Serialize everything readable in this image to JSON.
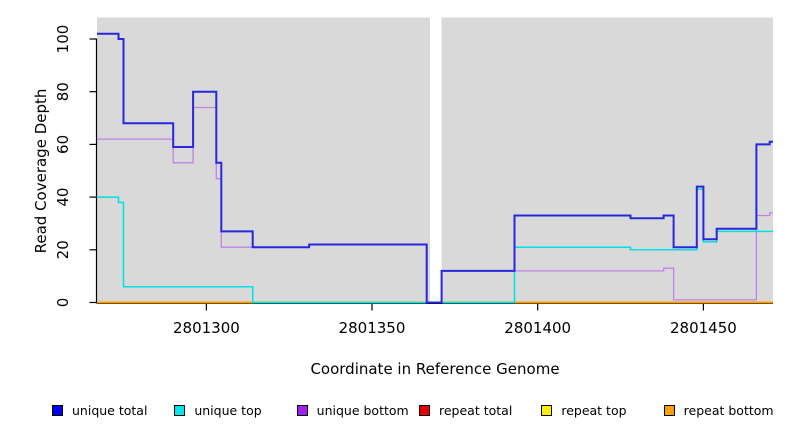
{
  "chart_data": {
    "type": "line",
    "subtype": "step-after",
    "title": "",
    "xlabel": "Coordinate in Reference Genome",
    "ylabel": "Read Coverage Depth",
    "xlim": [
      2801267,
      2801471
    ],
    "ylim": [
      0,
      108
    ],
    "x_ticks": [
      2801300,
      2801350,
      2801400,
      2801450
    ],
    "y_ticks": [
      0,
      20,
      40,
      60,
      80,
      100
    ],
    "grid": false,
    "plot_bg": "#d9d9d9",
    "gap_regions": [
      [
        2801367.5,
        2801371
      ]
    ],
    "legend_position": "bottom",
    "legend_order": [
      "unique total",
      "unique top",
      "unique bottom",
      "repeat total",
      "repeat top",
      "repeat bottom"
    ],
    "series": [
      {
        "name": "repeat total",
        "color": "#e80000",
        "legend_color": "#e80000",
        "width": 1.4,
        "points": [
          [
            2801267,
            0
          ]
        ]
      },
      {
        "name": "repeat top",
        "color": "#ffef00",
        "legend_color": "#ffef00",
        "width": 1.4,
        "points": [
          [
            2801267,
            0
          ]
        ]
      },
      {
        "name": "repeat bottom",
        "color": "#ff9e00",
        "legend_color": "#ff9e00",
        "width": 2,
        "points": [
          [
            2801267,
            0
          ]
        ]
      },
      {
        "name": "unique bottom",
        "color": "#c082e6",
        "legend_color": "#a020f0",
        "width": 1.3,
        "points": [
          [
            2801267,
            62
          ],
          [
            2801290,
            53
          ],
          [
            2801296,
            74
          ],
          [
            2801303,
            47
          ],
          [
            2801304.5,
            21
          ],
          [
            2801331,
            22
          ],
          [
            2801366.5,
            0
          ],
          [
            2801371,
            12
          ],
          [
            2801438,
            13
          ],
          [
            2801441,
            1
          ],
          [
            2801466,
            33
          ],
          [
            2801470,
            34
          ]
        ]
      },
      {
        "name": "unique top",
        "color": "#00e1e6",
        "legend_color": "#00e6e6",
        "width": 1.5,
        "points": [
          [
            2801267,
            40
          ],
          [
            2801273.5,
            38
          ],
          [
            2801275,
            6
          ],
          [
            2801314,
            0
          ],
          [
            2801393,
            21
          ],
          [
            2801428,
            20
          ],
          [
            2801448,
            43
          ],
          [
            2801450,
            23
          ],
          [
            2801454,
            27
          ]
        ]
      },
      {
        "name": "unique total",
        "color": "#2727dd",
        "legend_color": "#0000ee",
        "width": 2,
        "points": [
          [
            2801267,
            102
          ],
          [
            2801273.5,
            100
          ],
          [
            2801275,
            68
          ],
          [
            2801290,
            59
          ],
          [
            2801296,
            80
          ],
          [
            2801303,
            53
          ],
          [
            2801304.5,
            27
          ],
          [
            2801314,
            21
          ],
          [
            2801331,
            22
          ],
          [
            2801366.5,
            0
          ],
          [
            2801371,
            12
          ],
          [
            2801393,
            33
          ],
          [
            2801428,
            32
          ],
          [
            2801438,
            33
          ],
          [
            2801441,
            21
          ],
          [
            2801448,
            44
          ],
          [
            2801450,
            24
          ],
          [
            2801454,
            28
          ],
          [
            2801466,
            60
          ],
          [
            2801470,
            61
          ]
        ]
      }
    ],
    "overlap_segments": [
      {
        "name": "unique-top-over-repeat-bottom-at-zero",
        "x1": 2801314,
        "x2": 2801393,
        "value": 0,
        "color": "#85d29d",
        "width": 1.6
      }
    ]
  }
}
